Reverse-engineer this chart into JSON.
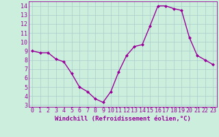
{
  "x": [
    0,
    1,
    2,
    3,
    4,
    5,
    6,
    7,
    8,
    9,
    10,
    11,
    12,
    13,
    14,
    15,
    16,
    17,
    18,
    19,
    20,
    21,
    22,
    23
  ],
  "y": [
    9.0,
    8.8,
    8.8,
    8.1,
    7.8,
    6.5,
    5.0,
    4.5,
    3.7,
    3.3,
    4.5,
    6.7,
    8.5,
    9.5,
    9.7,
    11.8,
    14.0,
    14.0,
    13.7,
    13.5,
    10.5,
    8.5,
    8.0,
    7.5
  ],
  "line_color": "#990099",
  "marker": "D",
  "marker_size": 2,
  "background_color": "#cceedd",
  "grid_color": "#aacccc",
  "xlabel": "Windchill (Refroidissement éolien,°C)",
  "xlim": [
    -0.5,
    23.5
  ],
  "ylim": [
    2.8,
    14.5
  ],
  "yticks": [
    3,
    4,
    5,
    6,
    7,
    8,
    9,
    10,
    11,
    12,
    13,
    14
  ],
  "xticks": [
    0,
    1,
    2,
    3,
    4,
    5,
    6,
    7,
    8,
    9,
    10,
    11,
    12,
    13,
    14,
    15,
    16,
    17,
    18,
    19,
    20,
    21,
    22,
    23
  ],
  "xlabel_fontsize": 6.5,
  "tick_fontsize": 6,
  "line_width": 1.0
}
